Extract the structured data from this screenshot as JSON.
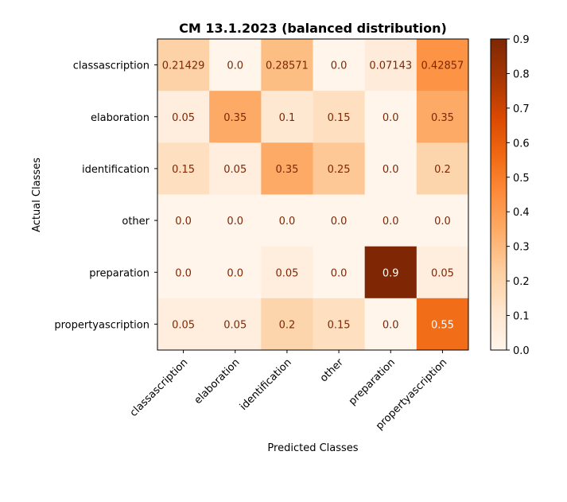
{
  "chart_data": {
    "type": "heatmap",
    "title": "CM 13.1.2023 (balanced distribution)",
    "xlabel": "Predicted Classes",
    "ylabel": "Actual Classes",
    "x_categories": [
      "classascription",
      "elaboration",
      "identification",
      "other",
      "preparation",
      "propertyascription"
    ],
    "y_categories": [
      "classascription",
      "elaboration",
      "identification",
      "other",
      "preparation",
      "propertyascription"
    ],
    "values": [
      [
        0.21429,
        0.0,
        0.28571,
        0.0,
        0.07143,
        0.42857
      ],
      [
        0.05,
        0.35,
        0.1,
        0.15,
        0.0,
        0.35
      ],
      [
        0.15,
        0.05,
        0.35,
        0.25,
        0.0,
        0.2
      ],
      [
        0.0,
        0.0,
        0.0,
        0.0,
        0.0,
        0.0
      ],
      [
        0.0,
        0.0,
        0.05,
        0.0,
        0.9,
        0.05
      ],
      [
        0.05,
        0.05,
        0.2,
        0.15,
        0.0,
        0.55
      ]
    ],
    "cell_labels": [
      [
        "0.21429",
        "0.0",
        "0.28571",
        "0.0",
        "0.07143",
        "0.42857"
      ],
      [
        "0.05",
        "0.35",
        "0.1",
        "0.15",
        "0.0",
        "0.35"
      ],
      [
        "0.15",
        "0.05",
        "0.35",
        "0.25",
        "0.0",
        "0.2"
      ],
      [
        "0.0",
        "0.0",
        "0.0",
        "0.0",
        "0.0",
        "0.0"
      ],
      [
        "0.0",
        "0.0",
        "0.05",
        "0.0",
        "0.9",
        "0.05"
      ],
      [
        "0.05",
        "0.05",
        "0.2",
        "0.15",
        "0.0",
        "0.55"
      ]
    ],
    "colorbar": {
      "range": [
        0.0,
        0.9
      ],
      "ticks": [
        "0.0",
        "0.1",
        "0.2",
        "0.3",
        "0.4",
        "0.5",
        "0.6",
        "0.7",
        "0.8",
        "0.9"
      ],
      "colormap": "Oranges"
    }
  }
}
